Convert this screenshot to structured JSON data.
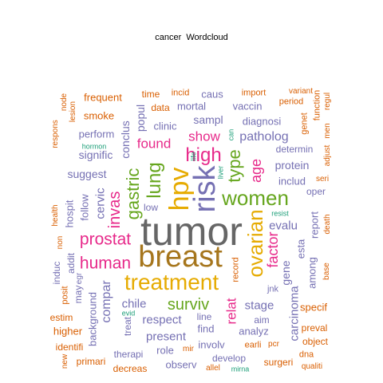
{
  "title": "cancer  Wordcloud",
  "colors": {
    "gray": "#666666",
    "gold": "#E6AB02",
    "orange": "#D95F02",
    "magenta": "#E7298A",
    "purple": "#7570B3",
    "green": "#66A61E",
    "teal": "#1B9E77",
    "brown": "#A6761D"
  },
  "words": [
    "tumor",
    "breast",
    "treatment",
    "risk",
    "hpv",
    "women",
    "ovarian",
    "lung",
    "gastric",
    "high",
    "type",
    "prostat",
    "human",
    "invas",
    "surviv",
    "factor",
    "age",
    "found",
    "show",
    "patholog",
    "relat",
    "evalu",
    "carcinoma",
    "stage",
    "respect",
    "present",
    "protein",
    "suggest",
    "compar",
    "chile",
    "cervic",
    "gene",
    "signific",
    "conclus",
    "hospit",
    "follow",
    "diagnosi",
    "includ",
    "clinic",
    "sampl",
    "popul",
    "mortal",
    "vaccin",
    "caus",
    "data",
    "time",
    "frequent",
    "smoke",
    "perform",
    "determin",
    "report",
    "esta",
    "among",
    "specif",
    "analyz",
    "find",
    "involv",
    "develop",
    "observ",
    "role",
    "therapi",
    "background",
    "estim",
    "higher",
    "identifi",
    "primari",
    "decreas",
    "surgeri",
    "preval",
    "object",
    "dna",
    "qualiti",
    "earli",
    "pcr",
    "mir",
    "allel",
    "mirna",
    "aim",
    "line",
    "jnk",
    "record",
    "oper",
    "low",
    "induc",
    "addit",
    "non",
    "posit",
    "may",
    "egr",
    "treat",
    "evid",
    "new",
    "resist",
    "liver",
    "life",
    "hormon",
    "can",
    "incid",
    "import",
    "variant",
    "period",
    "function",
    "regul",
    "men",
    "genet",
    "adjust",
    "seri",
    "death",
    "base",
    "health",
    "respons",
    "node",
    "lesion",
    "men"
  ]
}
